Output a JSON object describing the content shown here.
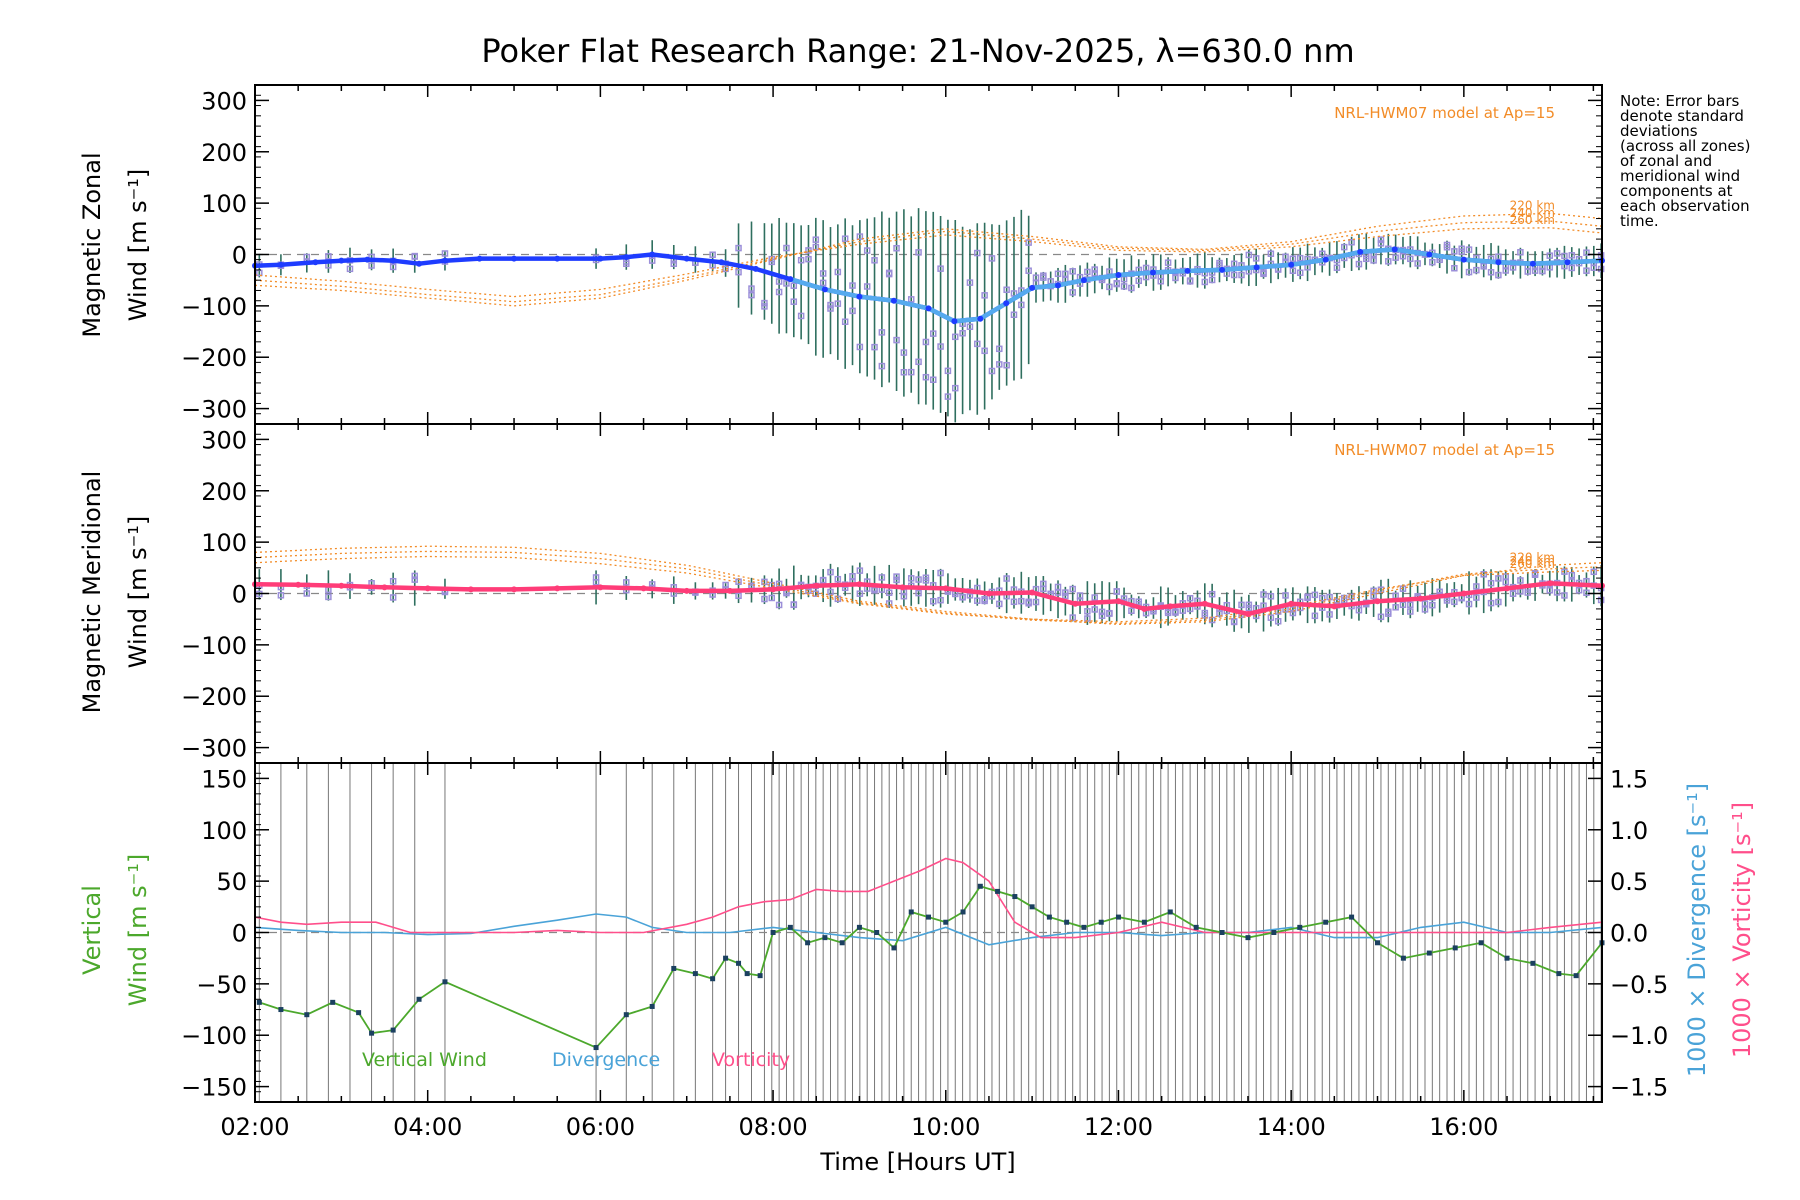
{
  "title": "Poker Flat Research Range: 21-Nov-2025, λ=630.0 nm",
  "xlabel": "Time [Hours UT]",
  "x_ticks": [
    "02:00",
    "04:00",
    "06:00",
    "08:00",
    "10:00",
    "12:00",
    "14:00",
    "16:00"
  ],
  "note_lines": [
    "Note: Error bars",
    "denote standard",
    "deviations",
    "(across all zones)",
    "of zonal and",
    "meridional wind",
    "components at",
    "each observation",
    "time."
  ],
  "colors": {
    "zonal": "#1e3cff",
    "zonal_light": "#55aaee",
    "meridional": "#ff3c78",
    "model": "#f28c28",
    "scatter": "#9b8fd9",
    "errbar": "#2f6f5f",
    "vertical": "#4ca82c",
    "divergence": "#4aa3d8",
    "vorticity": "#ff4f8b",
    "vwind_point": "#1b4060"
  },
  "chart_data": [
    {
      "type": "line",
      "panel": "zonal",
      "ylabel_line1": "Magnetic Zonal",
      "ylabel_line2": "Wind [m s⁻¹]",
      "ylim": [
        -330,
        330
      ],
      "xlim": [
        2.0,
        17.6
      ],
      "y_ticks": [
        "300",
        "200",
        "100",
        "0",
        "−100",
        "−200",
        "−300"
      ],
      "y_tick_values": [
        300,
        200,
        100,
        0,
        -100,
        -200,
        -300
      ],
      "model_label": "NRL-HWM07 model at Ap=15",
      "altitude_labels": [
        "220 km",
        "240 km",
        "260 km"
      ],
      "series": [
        {
          "name": "Magnetic Zonal Wind",
          "x": [
            2.0,
            2.3,
            2.7,
            3.0,
            3.3,
            3.6,
            3.9,
            4.2,
            4.6,
            5.0,
            5.5,
            6.0,
            6.3,
            6.6,
            7.0,
            7.4,
            7.8,
            8.2,
            8.6,
            9.0,
            9.4,
            9.8,
            10.1,
            10.4,
            10.7,
            11.0,
            11.3,
            11.6,
            12.0,
            12.4,
            12.8,
            13.2,
            13.6,
            14.0,
            14.4,
            14.8,
            15.2,
            15.6,
            16.0,
            16.4,
            16.8,
            17.2,
            17.6
          ],
          "values": [
            -22,
            -20,
            -15,
            -12,
            -10,
            -12,
            -18,
            -12,
            -8,
            -8,
            -8,
            -8,
            -5,
            0,
            -8,
            -15,
            -28,
            -48,
            -68,
            -82,
            -90,
            -105,
            -130,
            -125,
            -95,
            -65,
            -60,
            -50,
            -40,
            -35,
            -32,
            -30,
            -25,
            -20,
            -10,
            5,
            10,
            0,
            -10,
            -15,
            -18,
            -15,
            -12
          ]
        }
      ],
      "model_series": [
        {
          "name": "220 km",
          "x": [
            2,
            3,
            4,
            5,
            6,
            7,
            8,
            9,
            10,
            11,
            12,
            13,
            14,
            15,
            16,
            17,
            17.6
          ],
          "values": [
            -60,
            -70,
            -85,
            -100,
            -85,
            -50,
            -10,
            30,
            50,
            35,
            15,
            10,
            25,
            55,
            75,
            80,
            70
          ]
        },
        {
          "name": "240 km",
          "x": [
            2,
            3,
            4,
            5,
            6,
            7,
            8,
            9,
            10,
            11,
            12,
            13,
            14,
            15,
            16,
            17,
            17.6
          ],
          "values": [
            -50,
            -62,
            -78,
            -92,
            -78,
            -45,
            -8,
            25,
            45,
            30,
            12,
            8,
            20,
            45,
            62,
            65,
            55
          ]
        },
        {
          "name": "260 km",
          "x": [
            2,
            3,
            4,
            5,
            6,
            7,
            8,
            9,
            10,
            11,
            12,
            13,
            14,
            15,
            16,
            17,
            17.6
          ],
          "values": [
            -40,
            -52,
            -68,
            -82,
            -68,
            -38,
            -5,
            20,
            38,
            25,
            8,
            5,
            15,
            35,
            50,
            52,
            42
          ]
        }
      ]
    },
    {
      "type": "line",
      "panel": "meridional",
      "ylabel_line1": "Magnetic Meridional",
      "ylabel_line2": "Wind [m s⁻¹]",
      "ylim": [
        -330,
        330
      ],
      "xlim": [
        2.0,
        17.6
      ],
      "y_ticks": [
        "300",
        "200",
        "100",
        "0",
        "−100",
        "−200",
        "−300"
      ],
      "y_tick_values": [
        300,
        200,
        100,
        0,
        -100,
        -200,
        -300
      ],
      "model_label": "NRL-HWM07 model at Ap=15",
      "altitude_labels": [
        "220 km",
        "240 km",
        "260 km"
      ],
      "series": [
        {
          "name": "Magnetic Meridional Wind",
          "x": [
            2.0,
            2.5,
            3.0,
            3.5,
            4.0,
            4.5,
            5.0,
            5.5,
            6.0,
            6.5,
            7.0,
            7.5,
            8.0,
            8.5,
            9.0,
            9.5,
            10.0,
            10.5,
            11.0,
            11.5,
            12.0,
            12.3,
            12.6,
            13.0,
            13.5,
            14.0,
            14.5,
            15.0,
            15.5,
            16.0,
            16.5,
            17.0,
            17.6
          ],
          "values": [
            18,
            17,
            15,
            12,
            10,
            8,
            8,
            10,
            12,
            10,
            5,
            5,
            8,
            15,
            18,
            12,
            10,
            0,
            2,
            -20,
            -15,
            -30,
            -25,
            -20,
            -40,
            -20,
            -25,
            -15,
            -10,
            0,
            10,
            20,
            15
          ]
        }
      ],
      "model_series": [
        {
          "name": "220 km",
          "x": [
            2,
            3,
            4,
            5,
            6,
            7,
            8,
            9,
            10,
            11,
            12,
            13,
            14,
            15,
            16,
            17,
            17.6
          ],
          "values": [
            80,
            88,
            92,
            90,
            78,
            55,
            20,
            -15,
            -35,
            -50,
            -60,
            -55,
            -35,
            0,
            35,
            55,
            60
          ]
        },
        {
          "name": "240 km",
          "x": [
            2,
            3,
            4,
            5,
            6,
            7,
            8,
            9,
            10,
            11,
            12,
            13,
            14,
            15,
            16,
            17,
            17.6
          ],
          "values": [
            70,
            78,
            82,
            80,
            68,
            48,
            15,
            -18,
            -38,
            -52,
            -58,
            -52,
            -30,
            5,
            38,
            48,
            52
          ]
        },
        {
          "name": "260 km",
          "x": [
            2,
            3,
            4,
            5,
            6,
            7,
            8,
            9,
            10,
            11,
            12,
            13,
            14,
            15,
            16,
            17,
            17.6
          ],
          "values": [
            60,
            68,
            72,
            70,
            58,
            40,
            10,
            -20,
            -40,
            -50,
            -55,
            -48,
            -25,
            8,
            35,
            42,
            45
          ]
        }
      ]
    },
    {
      "type": "line",
      "panel": "vertical",
      "ylabel_line1": "Vertical",
      "ylabel_line2": "Wind [m s⁻¹]",
      "ylim": [
        -165,
        165
      ],
      "xlim": [
        2.0,
        17.6
      ],
      "y_ticks": [
        "150",
        "100",
        "50",
        "0",
        "−50",
        "−100",
        "−150"
      ],
      "y_tick_values": [
        150,
        100,
        50,
        0,
        -50,
        -100,
        -150
      ],
      "right_ylim": [
        -1.65,
        1.65
      ],
      "right_ticks": [
        "1.5",
        "1.0",
        "0.5",
        "0.0",
        "−0.5",
        "−1.0",
        "−1.5"
      ],
      "right_tick_values": [
        1.5,
        1.0,
        0.5,
        0.0,
        -0.5,
        -1.0,
        -1.5
      ],
      "right_label_div": "1000 × Divergence [s⁻¹]",
      "right_label_vort": "1000 × Vorticity [s⁻¹]",
      "legend": [
        "Vertical Wind",
        "Divergence",
        "Vorticity"
      ],
      "series": [
        {
          "name": "Vertical Wind",
          "x": [
            2.05,
            2.3,
            2.6,
            2.9,
            3.2,
            3.35,
            3.6,
            3.9,
            4.2,
            5.95,
            6.3,
            6.6,
            6.85,
            7.1,
            7.3,
            7.45,
            7.6,
            7.7,
            7.85,
            8.0,
            8.2,
            8.4,
            8.6,
            8.8,
            9.0,
            9.2,
            9.4,
            9.6,
            9.8,
            10.0,
            10.2,
            10.4,
            10.6,
            10.8,
            11.0,
            11.2,
            11.4,
            11.6,
            11.8,
            12.0,
            12.3,
            12.6,
            12.9,
            13.2,
            13.5,
            13.8,
            14.1,
            14.4,
            14.7,
            15.0,
            15.3,
            15.6,
            15.9,
            16.2,
            16.5,
            16.8,
            17.1,
            17.3,
            17.6
          ],
          "values": [
            -68,
            -75,
            -80,
            -68,
            -78,
            -98,
            -95,
            -65,
            -48,
            -112,
            -80,
            -72,
            -35,
            -40,
            -45,
            -25,
            -30,
            -40,
            -42,
            0,
            5,
            -10,
            -5,
            -10,
            5,
            0,
            -15,
            20,
            15,
            10,
            20,
            45,
            40,
            35,
            25,
            15,
            10,
            5,
            10,
            15,
            10,
            20,
            5,
            0,
            -5,
            0,
            5,
            10,
            15,
            -10,
            -25,
            -20,
            -15,
            -10,
            -25,
            -30,
            -40,
            -42,
            -10
          ]
        },
        {
          "name": "Divergence",
          "axis": "right",
          "x": [
            2.0,
            2.5,
            3.0,
            3.5,
            4.0,
            4.5,
            5.0,
            5.5,
            5.95,
            6.3,
            6.6,
            7.0,
            7.5,
            8.0,
            8.5,
            9.0,
            9.5,
            10.0,
            10.5,
            11.0,
            11.5,
            12.0,
            12.5,
            13.0,
            13.5,
            14.0,
            14.5,
            15.0,
            15.5,
            16.0,
            16.5,
            17.0,
            17.6
          ],
          "values": [
            0.05,
            0.02,
            0.0,
            0.0,
            -0.02,
            -0.01,
            0.06,
            0.12,
            0.18,
            0.15,
            0.05,
            0.0,
            0.0,
            0.05,
            0.0,
            -0.05,
            -0.08,
            0.05,
            -0.12,
            -0.05,
            0.0,
            0.0,
            -0.03,
            0.0,
            0.0,
            0.05,
            -0.05,
            -0.05,
            0.05,
            0.1,
            0.0,
            0.0,
            0.05
          ]
        },
        {
          "name": "Vorticity",
          "axis": "right",
          "x": [
            2.0,
            2.3,
            2.6,
            3.0,
            3.4,
            3.8,
            4.2,
            4.6,
            5.0,
            5.5,
            6.0,
            6.5,
            7.0,
            7.3,
            7.6,
            7.9,
            8.2,
            8.5,
            8.8,
            9.1,
            9.4,
            9.7,
            10.0,
            10.2,
            10.5,
            10.8,
            11.1,
            11.5,
            12.0,
            12.5,
            13.0,
            13.5,
            14.0,
            14.5,
            15.0,
            15.5,
            16.0,
            16.5,
            17.0,
            17.6
          ],
          "values": [
            0.15,
            0.1,
            0.08,
            0.1,
            0.1,
            0.0,
            0.0,
            0.0,
            0.0,
            0.02,
            0.0,
            0.0,
            0.08,
            0.15,
            0.25,
            0.3,
            0.32,
            0.42,
            0.4,
            0.4,
            0.5,
            0.6,
            0.72,
            0.68,
            0.5,
            0.1,
            -0.05,
            -0.05,
            0.0,
            0.1,
            0.0,
            0.0,
            0.0,
            0.0,
            0.0,
            0.0,
            0.0,
            0.0,
            0.05,
            0.1
          ]
        }
      ]
    }
  ]
}
